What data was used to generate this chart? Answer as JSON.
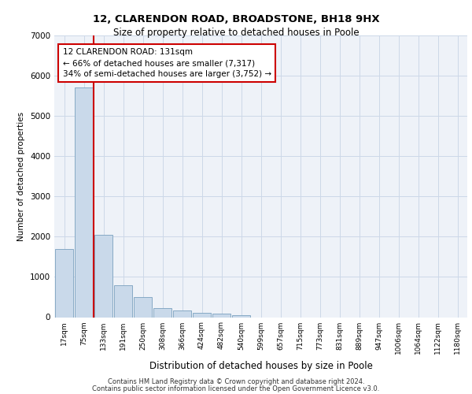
{
  "title1": "12, CLARENDON ROAD, BROADSTONE, BH18 9HX",
  "title2": "Size of property relative to detached houses in Poole",
  "xlabel": "Distribution of detached houses by size in Poole",
  "ylabel": "Number of detached properties",
  "footer1": "Contains HM Land Registry data © Crown copyright and database right 2024.",
  "footer2": "Contains public sector information licensed under the Open Government Licence v3.0.",
  "bar_color": "#c9d9ea",
  "bar_edge_color": "#7aa0be",
  "categories": [
    "17sqm",
    "75sqm",
    "133sqm",
    "191sqm",
    "250sqm",
    "308sqm",
    "366sqm",
    "424sqm",
    "482sqm",
    "540sqm",
    "599sqm",
    "657sqm",
    "715sqm",
    "773sqm",
    "831sqm",
    "889sqm",
    "947sqm",
    "1006sqm",
    "1064sqm",
    "1122sqm",
    "1180sqm"
  ],
  "values": [
    1700,
    5700,
    2050,
    800,
    490,
    220,
    165,
    110,
    80,
    45,
    0,
    0,
    0,
    0,
    0,
    0,
    0,
    0,
    0,
    0,
    0
  ],
  "ylim": [
    0,
    7000
  ],
  "yticks": [
    0,
    1000,
    2000,
    3000,
    4000,
    5000,
    6000,
    7000
  ],
  "red_line_x": 1.5,
  "annotation_text": "12 CLARENDON ROAD: 131sqm\n← 66% of detached houses are smaller (7,317)\n34% of semi-detached houses are larger (3,752) →",
  "red_line_color": "#cc0000",
  "grid_color": "#ccd8e8",
  "background_color": "#eef2f8"
}
